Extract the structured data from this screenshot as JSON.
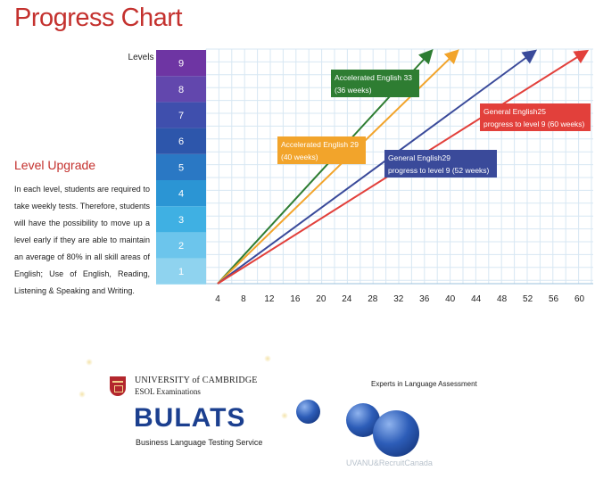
{
  "title": "Progress Chart",
  "sidebar": {
    "heading": "Level Upgrade",
    "text": "In each level, students are required to take weekly tests. Therefore, students will have the possibility to move up a level early if they are able to maintain an average of 80% in all skill areas of English; Use of English, Reading, Listening & Speaking and Writing."
  },
  "chart_data": {
    "type": "line",
    "ylabel": "Levels",
    "xlabel": "",
    "levels": [
      1,
      2,
      3,
      4,
      5,
      6,
      7,
      8,
      9
    ],
    "level_colors": [
      "#8fd3ef",
      "#6cc5ec",
      "#3fb0e3",
      "#2b95d4",
      "#2a78c4",
      "#2d56ab",
      "#3f4fad",
      "#6247ad",
      "#6e35a3"
    ],
    "xticks": [
      4,
      8,
      12,
      16,
      20,
      24,
      28,
      32,
      36,
      40,
      44,
      48,
      52,
      56,
      60
    ],
    "xlim": [
      4,
      62
    ],
    "ylim": [
      1,
      9
    ],
    "grid": true,
    "series": [
      {
        "name": "Accelerated English 33 (36 weeks)",
        "label_line1": "Accelerated English 33",
        "label_line2": "(36 weeks)",
        "color": "#2e7d32",
        "points": [
          [
            4,
            1
          ],
          [
            37,
            9
          ]
        ]
      },
      {
        "name": "Accelerated English 29 (40 weeks)",
        "label_line1": "Accelerated English 29",
        "label_line2": "(40 weeks)",
        "color": "#f2a42b",
        "points": [
          [
            4,
            1
          ],
          [
            41,
            9
          ]
        ]
      },
      {
        "name": "General English29 progress to level 9 (52 weeks)",
        "label_line1": "General English29",
        "label_line2": "progress to level 9 (52 weeks)",
        "color": "#3a4a9a",
        "points": [
          [
            4,
            1
          ],
          [
            53,
            9
          ]
        ]
      },
      {
        "name": "General English25 progress to level 9 (60 weeks)",
        "label_line1": "General English25",
        "label_line2": "progress to level 9 (60 weeks)",
        "color": "#e2403b",
        "points": [
          [
            4,
            1
          ],
          [
            61,
            9
          ]
        ]
      }
    ]
  },
  "footer": {
    "cambridge_line1": "UNIVERSITY of CAMBRIDGE",
    "cambridge_line2": "ESOL Examinations",
    "bulats": "BULATS",
    "bulats_sub": "Business Language Testing Service",
    "experts": "Experts in Language Assessment",
    "watermark": "UVANU&RecruitCanada"
  }
}
